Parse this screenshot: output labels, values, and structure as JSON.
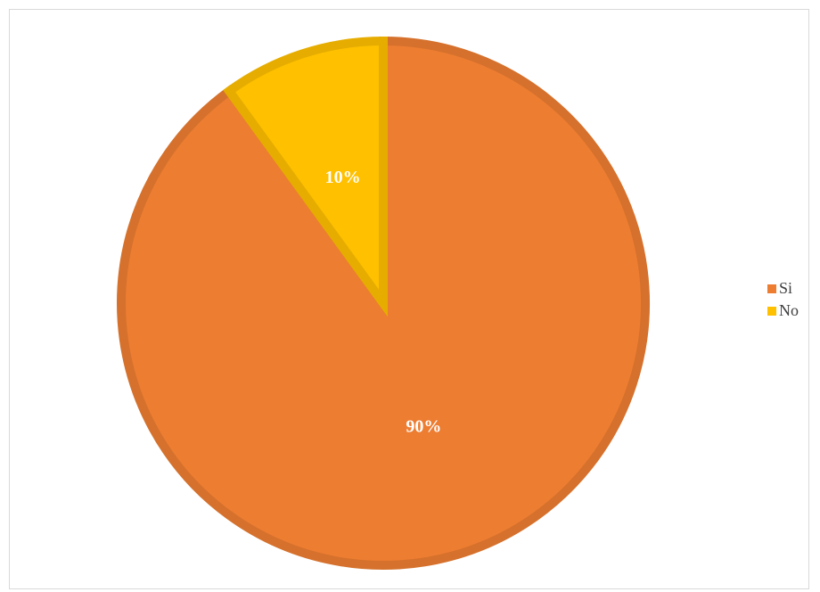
{
  "chart_data": {
    "type": "pie",
    "categories": [
      "Si",
      "No"
    ],
    "values": [
      90,
      10
    ],
    "data_labels": [
      "90%",
      "10%"
    ],
    "colors": [
      "#ed7d31",
      "#ffc000"
    ],
    "legend_position": "right",
    "title": ""
  }
}
